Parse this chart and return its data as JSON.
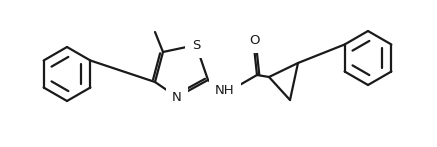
{
  "bg_color": "#ffffff",
  "line_color": "#1a1a1a",
  "line_width": 1.6,
  "figsize": [
    4.37,
    1.47
  ],
  "dpi": 100,
  "S_label": "S",
  "N_label": "N",
  "O_label": "O",
  "NH_label": "NH",
  "font_size": 9.5
}
